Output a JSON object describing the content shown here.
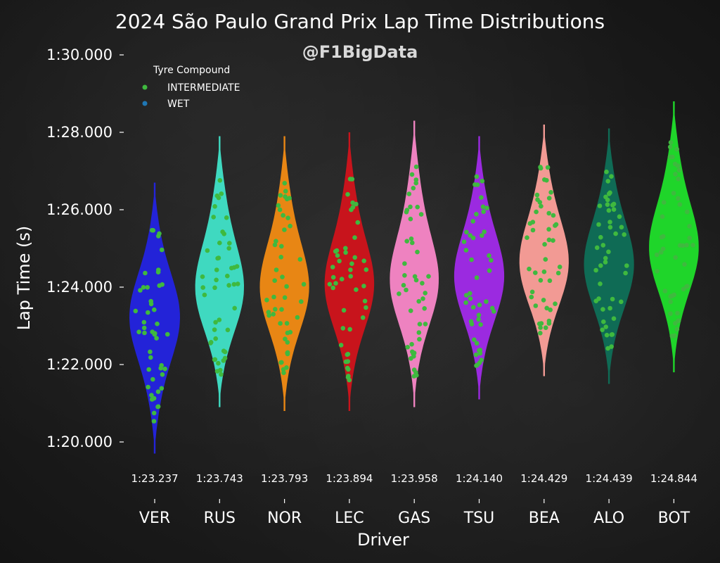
{
  "chart_data": {
    "type": "violin",
    "title": "2024 São Paulo Grand Prix Lap Time Distributions",
    "subtitle": "@F1BigData",
    "xlabel": "Driver",
    "ylabel": "Lap Time (s)",
    "ylim": [
      "1:19.5",
      "1:31.0"
    ],
    "yticks": [
      "1:20.000",
      "1:22.000",
      "1:24.000",
      "1:26.000",
      "1:28.000",
      "1:30.000"
    ],
    "legend": {
      "title": "Tyre Compound",
      "placement": "top-left",
      "entries": [
        {
          "label": "INTERMEDIATE",
          "color": "#3fb93f"
        },
        {
          "label": "WET",
          "color": "#1f77b4"
        }
      ]
    },
    "drivers": [
      {
        "code": "VER",
        "median": "1:23.237",
        "color": "#2323d8",
        "min": 80.5,
        "max": 85.7
      },
      {
        "code": "RUS",
        "median": "1:23.743",
        "color": "#3fd9c0",
        "min": 81.7,
        "max": 86.9
      },
      {
        "code": "NOR",
        "median": "1:23.793",
        "color": "#e88614",
        "min": 81.6,
        "max": 86.9
      },
      {
        "code": "LEC",
        "median": "1:23.894",
        "color": "#c8141c",
        "min": 81.6,
        "max": 87.0
      },
      {
        "code": "GAS",
        "median": "1:23.958",
        "color": "#ee82c0",
        "min": 81.7,
        "max": 87.3
      },
      {
        "code": "TSU",
        "median": "1:24.140",
        "color": "#9b2ae0",
        "min": 81.9,
        "max": 86.9
      },
      {
        "code": "BEA",
        "median": "1:24.429",
        "color": "#f29a94",
        "min": 82.5,
        "max": 87.2
      },
      {
        "code": "ALO",
        "median": "1:24.439",
        "color": "#0f6b55",
        "min": 82.3,
        "max": 87.1
      },
      {
        "code": "BOT",
        "median": "1:24.844",
        "color": "#1fd52a",
        "min": 82.6,
        "max": 87.8
      }
    ]
  }
}
